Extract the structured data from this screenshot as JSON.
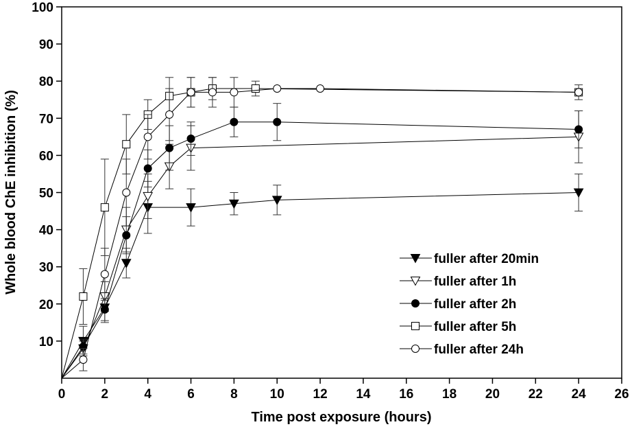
{
  "chart_data": {
    "type": "line",
    "title": "",
    "xlabel": "Time post exposure (hours)",
    "ylabel": "Whole blood ChE inhibition (%)",
    "xlim": [
      0,
      26
    ],
    "ylim": [
      0,
      100
    ],
    "xticks": [
      0,
      2,
      4,
      6,
      8,
      10,
      12,
      14,
      16,
      18,
      20,
      22,
      24,
      26
    ],
    "yticks": [
      10,
      20,
      30,
      40,
      50,
      60,
      70,
      80,
      90,
      100
    ],
    "grid": false,
    "legend_position": "bottom-right",
    "series": [
      {
        "name": "fuller after 20min",
        "marker": "triangle-down-filled",
        "x": [
          0,
          1,
          2,
          3,
          4,
          6,
          8,
          10,
          24
        ],
        "y": [
          0,
          10,
          19,
          31,
          46,
          46,
          47,
          48,
          50
        ],
        "err": [
          0,
          4,
          4,
          4,
          7,
          5,
          3,
          4,
          5
        ]
      },
      {
        "name": "fuller after 1h",
        "marker": "triangle-down-open",
        "x": [
          0,
          1,
          2,
          3,
          4,
          5,
          6,
          24
        ],
        "y": [
          0,
          8,
          22,
          40,
          49,
          57,
          62,
          65
        ],
        "err": [
          0,
          2,
          4,
          6,
          6,
          6,
          6,
          7
        ]
      },
      {
        "name": "fuller after 2h",
        "marker": "circle-filled",
        "x": [
          0,
          1,
          2,
          3,
          4,
          5,
          6,
          8,
          10,
          24
        ],
        "y": [
          0,
          8.5,
          18.5,
          38.5,
          56.5,
          62,
          64.5,
          69,
          69,
          67
        ],
        "err": [
          0,
          2,
          3,
          5,
          5,
          6,
          4.5,
          4,
          5,
          5
        ]
      },
      {
        "name": "fuller after 5h",
        "marker": "square-open",
        "x": [
          0,
          1,
          2,
          3,
          4,
          5,
          6,
          7,
          9,
          24
        ],
        "y": [
          0,
          22,
          46,
          63,
          71,
          76,
          77,
          78,
          78,
          77
        ],
        "err": [
          0,
          7.5,
          13,
          8,
          4,
          5,
          4,
          3,
          2,
          2
        ]
      },
      {
        "name": "fuller after 24h",
        "marker": "circle-open",
        "x": [
          0,
          1,
          2,
          3,
          4,
          5,
          6,
          7,
          8,
          10,
          12,
          24
        ],
        "y": [
          0,
          5,
          28,
          50,
          65,
          71,
          77,
          77,
          77,
          78,
          78,
          77
        ],
        "err": [
          0,
          3,
          7,
          9,
          6,
          7,
          4,
          4,
          4,
          0,
          0,
          1
        ]
      }
    ]
  }
}
